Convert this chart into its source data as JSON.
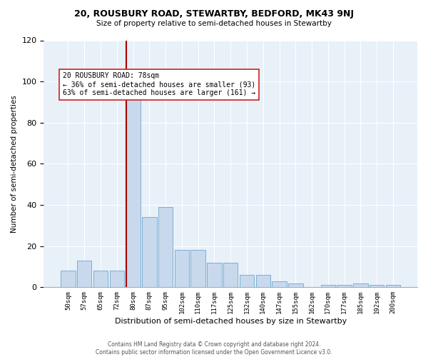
{
  "title": "20, ROUSBURY ROAD, STEWARTBY, BEDFORD, MK43 9NJ",
  "subtitle": "Size of property relative to semi-detached houses in Stewartby",
  "xlabel": "Distribution of semi-detached houses by size in Stewartby",
  "ylabel": "Number of semi-detached properties",
  "bar_labels": [
    "50sqm",
    "57sqm",
    "65sqm",
    "72sqm",
    "80sqm",
    "87sqm",
    "95sqm",
    "102sqm",
    "110sqm",
    "117sqm",
    "125sqm",
    "132sqm",
    "140sqm",
    "147sqm",
    "155sqm",
    "162sqm",
    "170sqm",
    "177sqm",
    "185sqm",
    "192sqm",
    "200sqm"
  ],
  "bar_values": [
    8,
    13,
    8,
    8,
    98,
    34,
    39,
    18,
    18,
    12,
    12,
    6,
    6,
    3,
    2,
    0,
    1,
    1,
    2,
    1,
    1
  ],
  "bar_color": "#c8d9ed",
  "bar_edge_color": "#7aafd4",
  "red_line_color": "#aa0000",
  "annotation_box_facecolor": "#ffffff",
  "annotation_box_edgecolor": "#cc2222",
  "property_label": "20 ROUSBURY ROAD: 78sqm",
  "smaller_pct": 36,
  "smaller_count": 93,
  "larger_pct": 63,
  "larger_count": 161,
  "ylim": [
    0,
    120
  ],
  "yticks": [
    0,
    20,
    40,
    60,
    80,
    100,
    120
  ],
  "axes_bg": "#e8f0f8",
  "fig_bg": "#ffffff",
  "footer_line1": "Contains HM Land Registry data © Crown copyright and database right 2024.",
  "footer_line2": "Contains public sector information licensed under the Open Government Licence v3.0."
}
